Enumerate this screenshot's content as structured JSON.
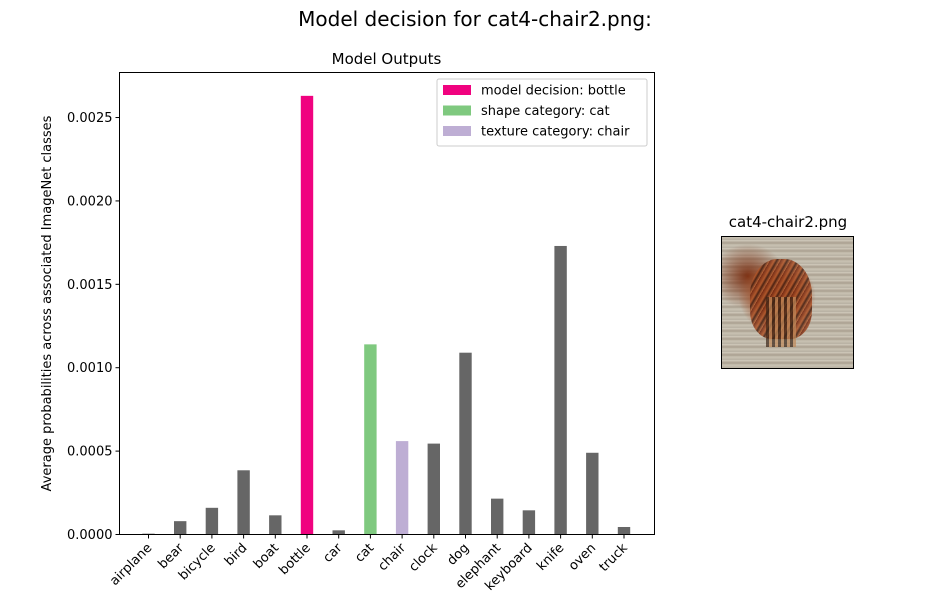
{
  "figure": {
    "title": "Model decision for cat4-chair2.png:"
  },
  "image_panel": {
    "title": "cat4-chair2.png"
  },
  "chart_data": {
    "type": "bar",
    "title": "Model Outputs",
    "xlabel": "",
    "ylabel": "Average probabilities across associated ImageNet classes",
    "ylim": [
      0,
      0.00277
    ],
    "yticks": [
      "0.0000",
      "0.0005",
      "0.0010",
      "0.0015",
      "0.0020",
      "0.0025"
    ],
    "ytick_values": [
      0,
      0.0005,
      0.001,
      0.0015,
      0.002,
      0.0025
    ],
    "categories": [
      "airplane",
      "bear",
      "bicycle",
      "bird",
      "boat",
      "bottle",
      "car",
      "cat",
      "chair",
      "clock",
      "dog",
      "elephant",
      "keyboard",
      "knife",
      "oven",
      "truck"
    ],
    "values": [
      5e-06,
      8e-05,
      0.00016,
      0.000385,
      0.000115,
      0.00263,
      2.5e-05,
      0.00114,
      0.00056,
      0.000545,
      0.00109,
      0.000215,
      0.000145,
      0.00173,
      0.00049,
      4.5e-05
    ],
    "bar_colors": [
      "#666666",
      "#666666",
      "#666666",
      "#666666",
      "#666666",
      "#f0027f",
      "#666666",
      "#7fc97f",
      "#beaed4",
      "#666666",
      "#666666",
      "#666666",
      "#666666",
      "#666666",
      "#666666",
      "#666666"
    ],
    "legend": {
      "placement": "top-right",
      "entries": [
        {
          "label": "model decision: bottle",
          "color": "#f0027f"
        },
        {
          "label": "shape category: cat",
          "color": "#7fc97f"
        },
        {
          "label": "texture category: chair",
          "color": "#beaed4"
        }
      ]
    },
    "grid": false
  }
}
